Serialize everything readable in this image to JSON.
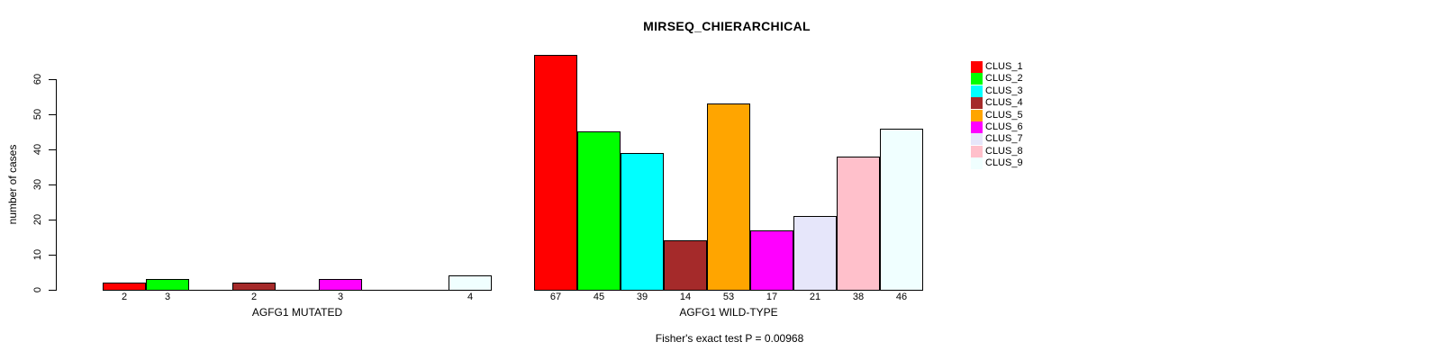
{
  "title": "MIRSEQ_CHIERARCHICAL",
  "chart_data": {
    "type": "bar",
    "title": "MIRSEQ_CHIERARCHICAL",
    "ylabel": "number of cases",
    "xlabel": "",
    "ylim": [
      0,
      60
    ],
    "yticks": [
      0,
      10,
      20,
      30,
      40,
      50,
      60
    ],
    "grid": false,
    "legend_position": "right",
    "categories": [
      "AGFG1 MUTATED",
      "AGFG1 WILD-TYPE"
    ],
    "series": [
      {
        "name": "CLUS_1",
        "color": "#FF0000",
        "values": [
          2,
          67
        ]
      },
      {
        "name": "CLUS_2",
        "color": "#00FF00",
        "values": [
          3,
          45
        ]
      },
      {
        "name": "CLUS_3",
        "color": "#00FFFF",
        "values": [
          0,
          39
        ]
      },
      {
        "name": "CLUS_4",
        "color": "#A52A2A",
        "values": [
          2,
          14
        ]
      },
      {
        "name": "CLUS_5",
        "color": "#FFA500",
        "values": [
          0,
          53
        ]
      },
      {
        "name": "CLUS_6",
        "color": "#FF00FF",
        "values": [
          3,
          17
        ]
      },
      {
        "name": "CLUS_7",
        "color": "#E6E6FA",
        "values": [
          0,
          21
        ]
      },
      {
        "name": "CLUS_8",
        "color": "#FFC0CB",
        "values": [
          0,
          38
        ]
      },
      {
        "name": "CLUS_9",
        "color": "#F0FFFF",
        "values": [
          4,
          46
        ]
      }
    ],
    "bar_labels_rule": "value shown under each bar with value > 0",
    "annotation": "Fisher's exact test P = 0.00968"
  }
}
